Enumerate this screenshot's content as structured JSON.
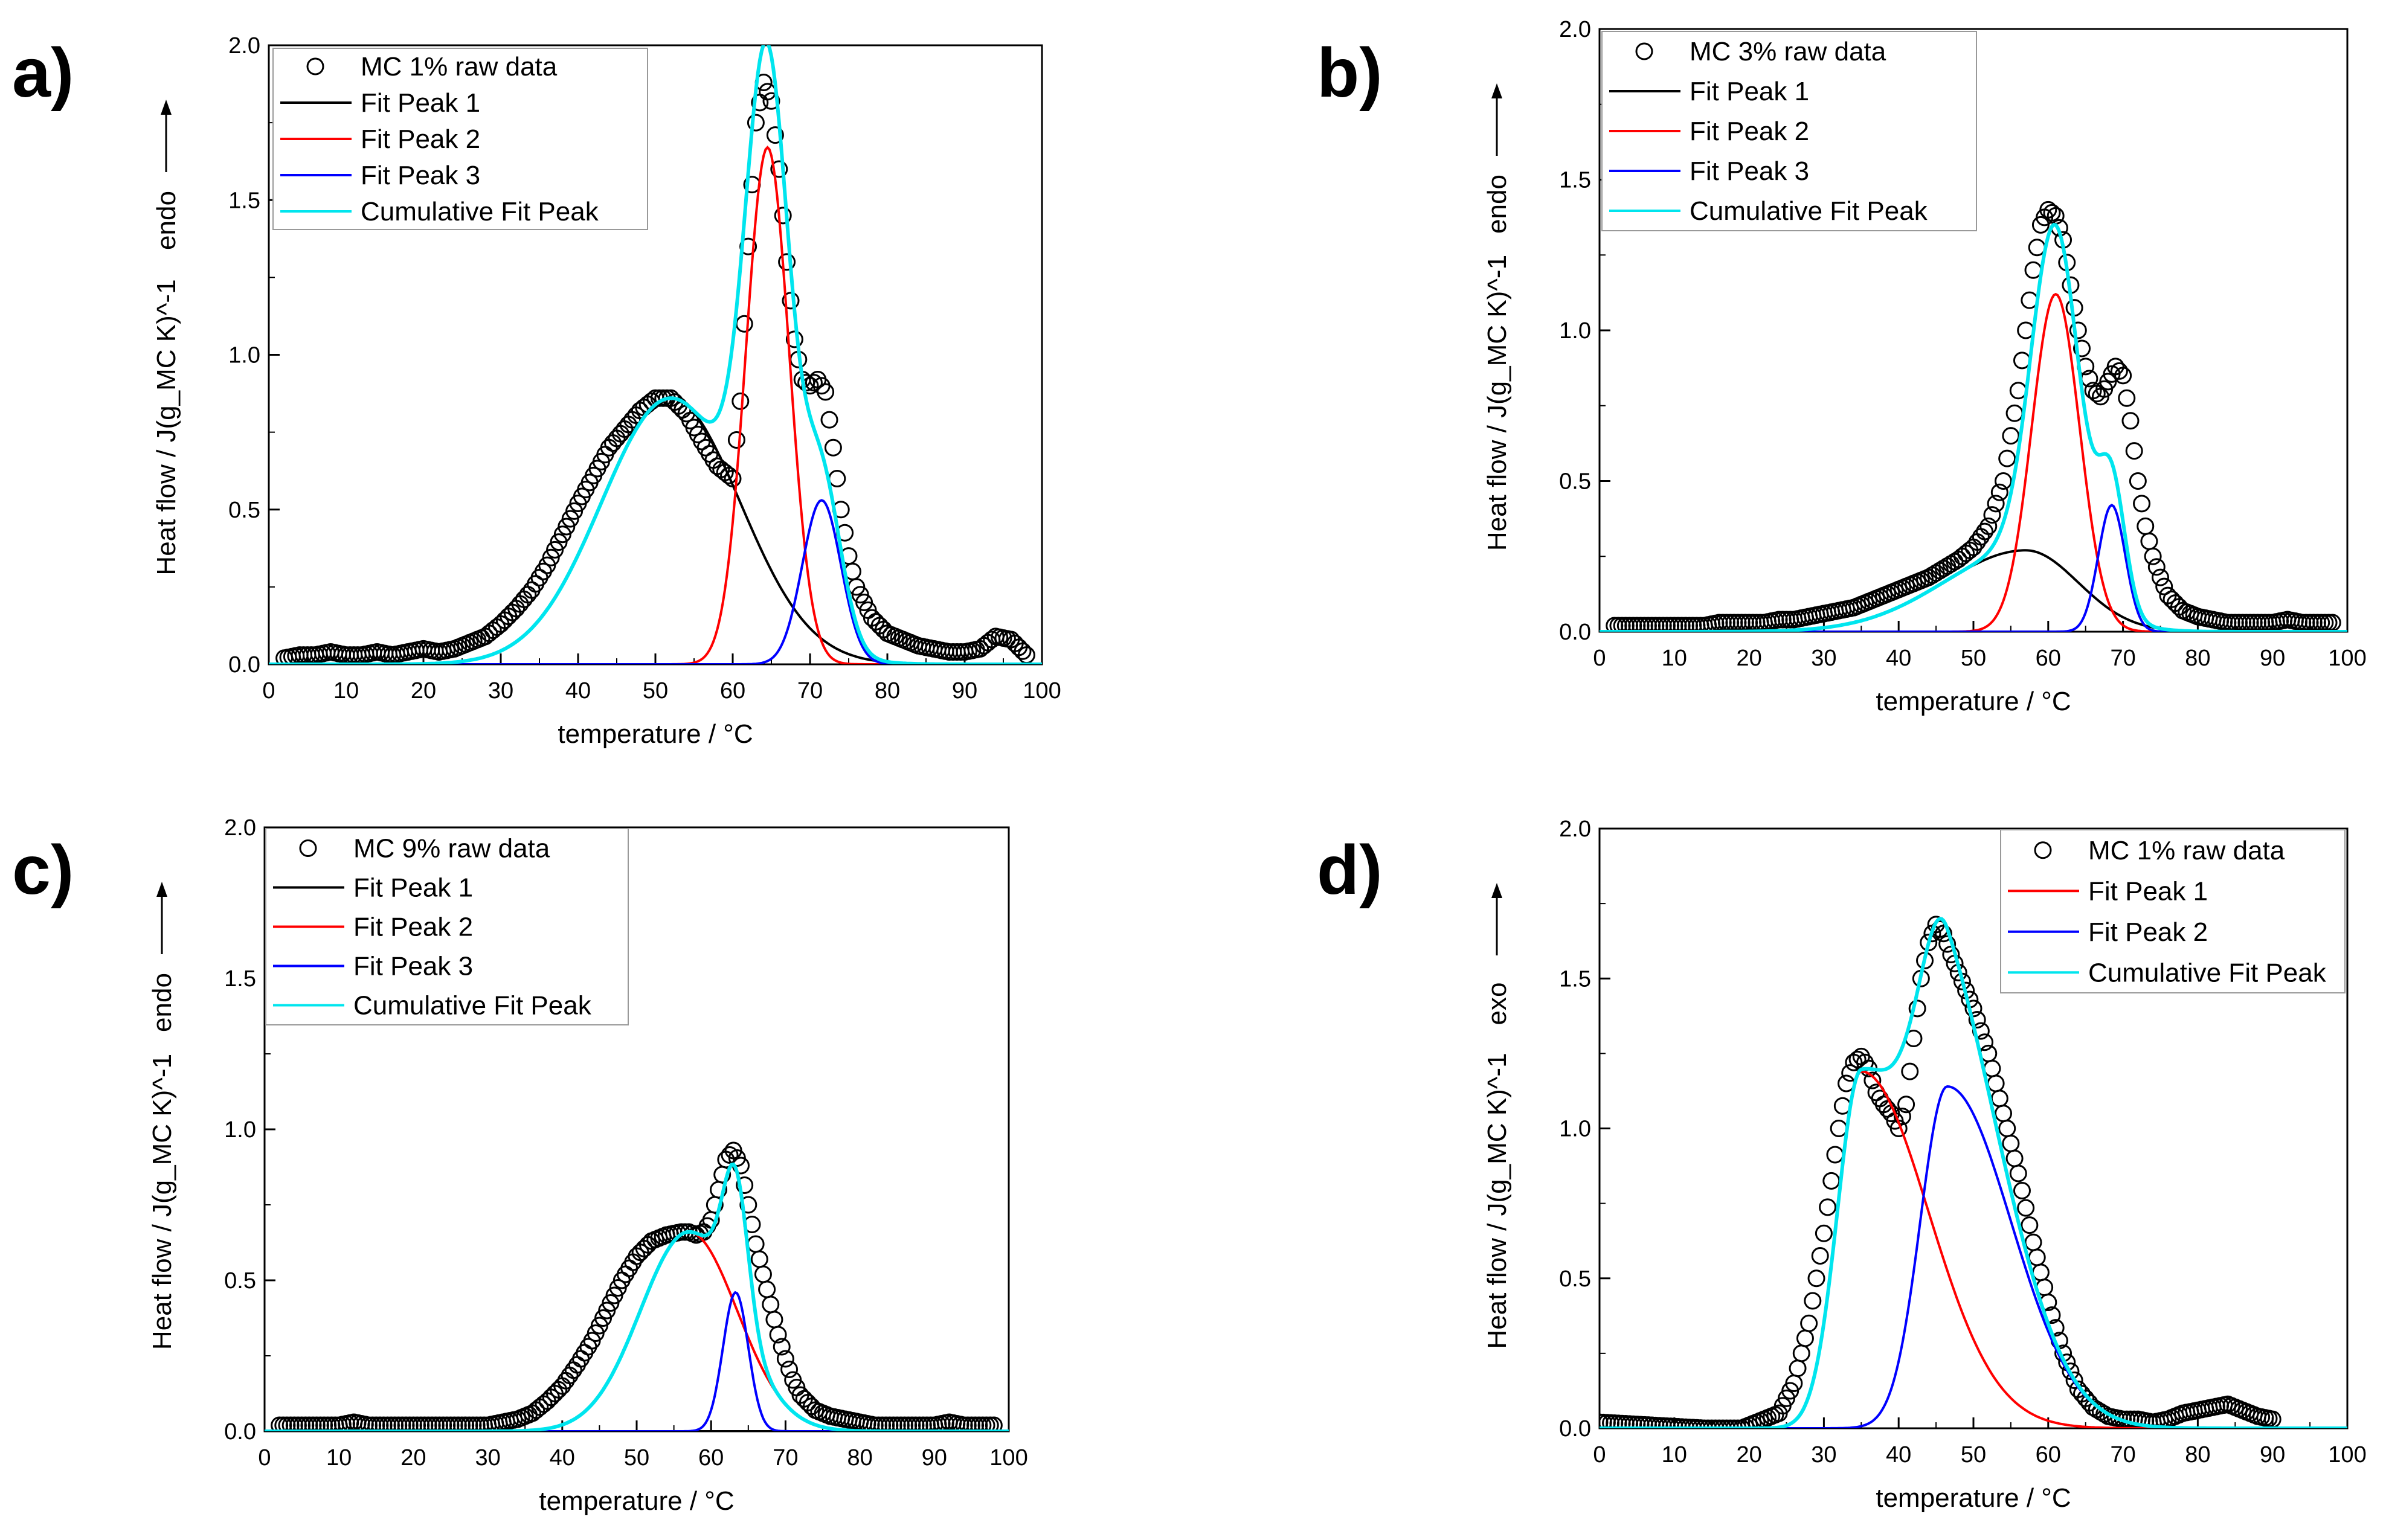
{
  "chart_data": [
    {
      "type": "scatter+line",
      "panel": "a)",
      "xlabel": "temperature / °C",
      "ylabel": "Heat flow / J(g_MC K)^-1",
      "direction": "endo",
      "xlim": [
        0,
        100
      ],
      "ylim": [
        0,
        2.0
      ],
      "xticks": [
        0,
        10,
        20,
        30,
        40,
        50,
        60,
        70,
        80,
        90,
        100
      ],
      "yticks": [
        0.0,
        0.5,
        1.0,
        1.5,
        2.0
      ],
      "legend_position": "top-left",
      "raw_data": {
        "name": "MC 1% raw data",
        "x": [
          2,
          4,
          6,
          8,
          10,
          12,
          14,
          16,
          18,
          20,
          22,
          24,
          26,
          28,
          30,
          32,
          34,
          36,
          38,
          40,
          42,
          44,
          46,
          48,
          50,
          52,
          54,
          56,
          58,
          60,
          61,
          62,
          63,
          64,
          65,
          66,
          67,
          68,
          69,
          70,
          71,
          72,
          73,
          74,
          75,
          76,
          78,
          80,
          82,
          84,
          86,
          88,
          90,
          92,
          94,
          96,
          98
        ],
        "y": [
          0.02,
          0.03,
          0.03,
          0.04,
          0.03,
          0.03,
          0.04,
          0.03,
          0.04,
          0.05,
          0.04,
          0.05,
          0.07,
          0.09,
          0.13,
          0.18,
          0.24,
          0.32,
          0.42,
          0.52,
          0.61,
          0.7,
          0.76,
          0.82,
          0.86,
          0.86,
          0.81,
          0.72,
          0.64,
          0.6,
          0.85,
          1.35,
          1.75,
          1.88,
          1.82,
          1.6,
          1.3,
          1.05,
          0.92,
          0.9,
          0.92,
          0.88,
          0.7,
          0.5,
          0.35,
          0.25,
          0.15,
          0.1,
          0.08,
          0.06,
          0.05,
          0.04,
          0.04,
          0.05,
          0.09,
          0.08,
          0.03
        ]
      },
      "series": [
        {
          "name": "Fit Peak 1",
          "color": "#000000",
          "shape": "gaussian",
          "center": 52,
          "height": 0.86,
          "sigma": 9
        },
        {
          "name": "Fit Peak 2",
          "color": "#ff0000",
          "shape": "gaussian",
          "center": 64.5,
          "height": 1.67,
          "sigma": 2.8
        },
        {
          "name": "Fit Peak 3",
          "color": "#0000ff",
          "shape": "gaussian",
          "center": 71.5,
          "height": 0.53,
          "sigma": 2.5
        },
        {
          "name": "Cumulative Fit Peak",
          "color": "#00e5ee",
          "shape": "sum"
        }
      ]
    },
    {
      "type": "scatter+line",
      "panel": "b)",
      "xlabel": "temperature / °C",
      "ylabel": "Heat flow / J(g_MC K)^-1",
      "direction": "endo",
      "xlim": [
        0,
        100
      ],
      "ylim": [
        0,
        2.0
      ],
      "xticks": [
        0,
        10,
        20,
        30,
        40,
        50,
        60,
        70,
        80,
        90,
        100
      ],
      "yticks": [
        0.0,
        0.5,
        1.0,
        1.5,
        2.0
      ],
      "legend_position": "top-left",
      "raw_data": {
        "name": "MC 3% raw data",
        "x": [
          2,
          4,
          6,
          8,
          10,
          12,
          14,
          16,
          18,
          20,
          22,
          24,
          26,
          28,
          30,
          32,
          34,
          36,
          38,
          40,
          42,
          44,
          46,
          48,
          50,
          52,
          54,
          56,
          57,
          58,
          59,
          60,
          61,
          62,
          63,
          64,
          65,
          66,
          67,
          68,
          69,
          70,
          71,
          72,
          73,
          74,
          75,
          76,
          78,
          80,
          82,
          84,
          86,
          88,
          90,
          92,
          94,
          96,
          98
        ],
        "y": [
          0.02,
          0.02,
          0.02,
          0.02,
          0.02,
          0.02,
          0.02,
          0.03,
          0.03,
          0.03,
          0.03,
          0.04,
          0.04,
          0.05,
          0.06,
          0.07,
          0.08,
          0.1,
          0.12,
          0.14,
          0.16,
          0.18,
          0.21,
          0.24,
          0.28,
          0.35,
          0.5,
          0.8,
          1.0,
          1.2,
          1.35,
          1.4,
          1.38,
          1.3,
          1.15,
          1.0,
          0.88,
          0.8,
          0.78,
          0.83,
          0.88,
          0.85,
          0.7,
          0.5,
          0.35,
          0.25,
          0.18,
          0.12,
          0.07,
          0.05,
          0.04,
          0.03,
          0.03,
          0.03,
          0.03,
          0.04,
          0.03,
          0.03,
          0.03
        ]
      },
      "series": [
        {
          "name": "Fit Peak 1",
          "color": "#000000",
          "shape": "asymmetric",
          "center": 57,
          "height": 0.27,
          "sigma_left": 11,
          "sigma_right": 7
        },
        {
          "name": "Fit Peak 2",
          "color": "#ff0000",
          "shape": "gaussian",
          "center": 61,
          "height": 1.12,
          "sigma": 3.2
        },
        {
          "name": "Fit Peak 3",
          "color": "#0000ff",
          "shape": "gaussian",
          "center": 68.5,
          "height": 0.42,
          "sigma": 1.8
        },
        {
          "name": "Cumulative Fit Peak",
          "color": "#00e5ee",
          "shape": "sum"
        }
      ]
    },
    {
      "type": "scatter+line",
      "panel": "c)",
      "xlabel": "temperature / °C",
      "ylabel": "Heat flow / J(g_MC K)^-1",
      "direction": "endo",
      "xlim": [
        0,
        100
      ],
      "ylim": [
        0,
        2.0
      ],
      "xticks": [
        0,
        10,
        20,
        30,
        40,
        50,
        60,
        70,
        80,
        90,
        100
      ],
      "yticks": [
        0.0,
        0.5,
        1.0,
        1.5,
        2.0
      ],
      "legend_position": "top-left",
      "raw_data": {
        "name": "MC 9% raw data",
        "x": [
          2,
          4,
          6,
          8,
          10,
          12,
          14,
          16,
          18,
          20,
          22,
          24,
          26,
          28,
          30,
          32,
          34,
          36,
          38,
          40,
          42,
          44,
          46,
          48,
          50,
          52,
          54,
          56,
          57,
          58,
          59,
          60,
          61,
          62,
          63,
          64,
          65,
          66,
          67,
          68,
          69,
          70,
          71,
          72,
          74,
          76,
          78,
          80,
          82,
          84,
          86,
          88,
          90,
          92,
          94,
          96,
          98
        ],
        "y": [
          0.02,
          0.02,
          0.02,
          0.02,
          0.02,
          0.03,
          0.02,
          0.02,
          0.02,
          0.02,
          0.02,
          0.02,
          0.02,
          0.02,
          0.02,
          0.03,
          0.04,
          0.06,
          0.1,
          0.15,
          0.22,
          0.3,
          0.4,
          0.5,
          0.58,
          0.63,
          0.65,
          0.66,
          0.66,
          0.65,
          0.66,
          0.7,
          0.8,
          0.9,
          0.93,
          0.88,
          0.75,
          0.62,
          0.52,
          0.42,
          0.32,
          0.24,
          0.17,
          0.12,
          0.07,
          0.05,
          0.04,
          0.03,
          0.02,
          0.02,
          0.02,
          0.02,
          0.02,
          0.03,
          0.02,
          0.02,
          0.02
        ]
      },
      "series": [
        {
          "name": "Fit Peak 1",
          "color": "#000000",
          "shape": "gaussian",
          "center": 50,
          "height": 0.0,
          "sigma": 5
        },
        {
          "name": "Fit Peak 2",
          "color": "#ff0000",
          "shape": "asymmetric",
          "center": 57,
          "height": 0.66,
          "sigma_left": 6.5,
          "sigma_right": 6.5
        },
        {
          "name": "Fit Peak 3",
          "color": "#0000ff",
          "shape": "gaussian",
          "center": 63.3,
          "height": 0.46,
          "sigma": 1.7
        },
        {
          "name": "Cumulative Fit Peak",
          "color": "#00e5ee",
          "shape": "sum"
        }
      ]
    },
    {
      "type": "scatter+line",
      "panel": "d)",
      "xlabel": "temperature / °C",
      "ylabel": "Heat flow / J(g_MC K)^-1",
      "direction": "exo",
      "xlim": [
        0,
        100
      ],
      "ylim": [
        0,
        2.0
      ],
      "xticks": [
        0,
        10,
        20,
        30,
        40,
        50,
        60,
        70,
        80,
        90,
        100
      ],
      "yticks": [
        0.0,
        0.5,
        1.0,
        1.5,
        2.0
      ],
      "legend_position": "top-right",
      "raw_data": {
        "name": "MC 1% raw data",
        "x": [
          0,
          14,
          17,
          19,
          24,
          26,
          28,
          30,
          32,
          33,
          34,
          35,
          36,
          37,
          38,
          39,
          40,
          41,
          42,
          43,
          44,
          45,
          46,
          47,
          48,
          50,
          52,
          54,
          56,
          58,
          60,
          62,
          64,
          66,
          68,
          70,
          72,
          74,
          76,
          78,
          80,
          82,
          84,
          86,
          88,
          90
        ],
        "y": [
          0.02,
          0.0,
          0.0,
          0.0,
          0.05,
          0.15,
          0.35,
          0.65,
          1.0,
          1.15,
          1.22,
          1.24,
          1.2,
          1.12,
          1.08,
          1.05,
          1.0,
          1.08,
          1.3,
          1.5,
          1.62,
          1.68,
          1.65,
          1.58,
          1.52,
          1.4,
          1.25,
          1.05,
          0.85,
          0.62,
          0.42,
          0.25,
          0.13,
          0.07,
          0.04,
          0.03,
          0.03,
          0.02,
          0.03,
          0.05,
          0.06,
          0.07,
          0.08,
          0.06,
          0.04,
          0.03
        ]
      },
      "series": [
        {
          "name": "Fit Peak 1",
          "color": "#ff0000",
          "shape": "asymmetric",
          "center": 35,
          "height": 1.19,
          "sigma_left": 3.2,
          "sigma_right": 9
        },
        {
          "name": "Fit Peak 2",
          "color": "#0000ff",
          "shape": "asymmetric",
          "center": 46.5,
          "height": 1.14,
          "sigma_left": 3.6,
          "sigma_right": 8.5
        },
        {
          "name": "Cumulative Fit Peak",
          "color": "#00e5ee",
          "shape": "sum"
        }
      ]
    }
  ]
}
